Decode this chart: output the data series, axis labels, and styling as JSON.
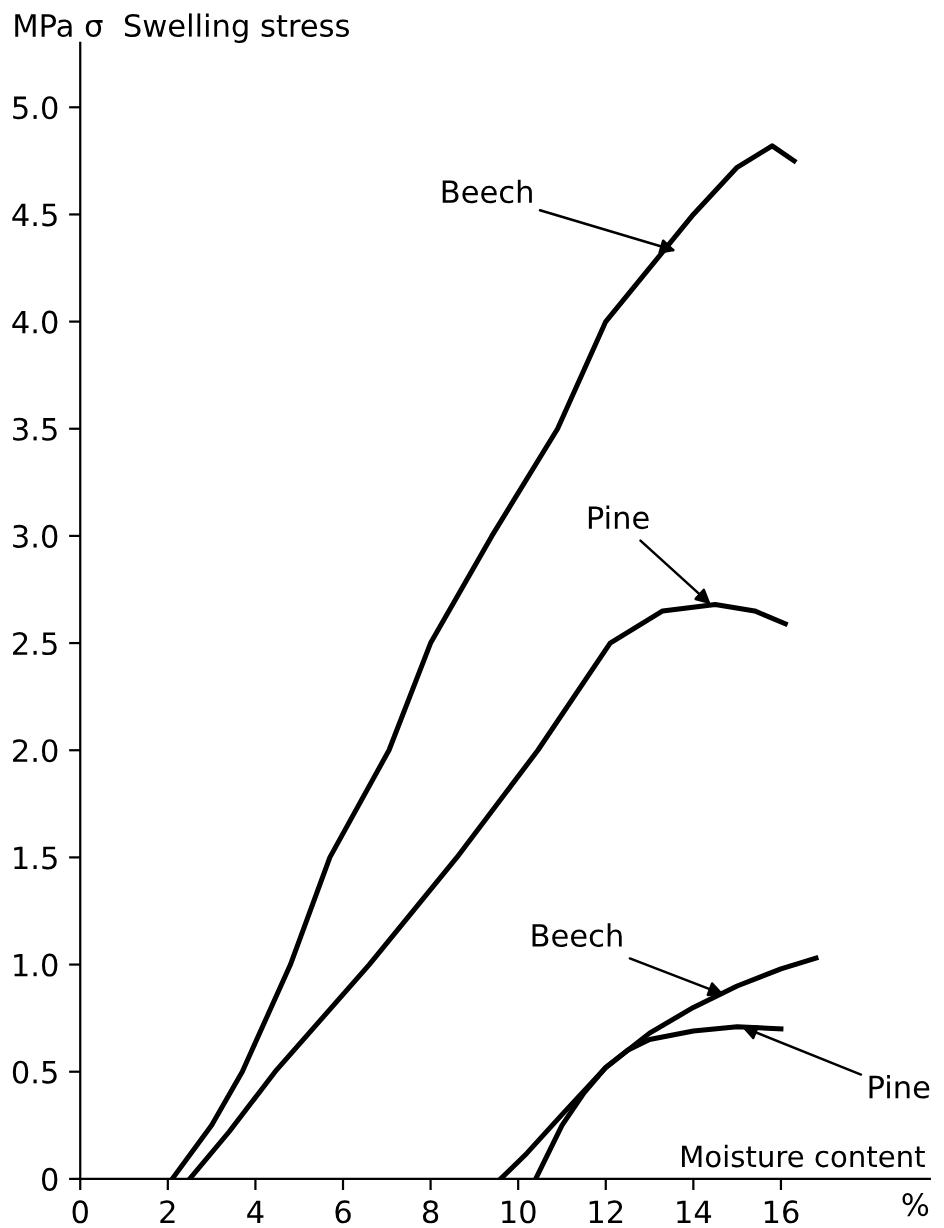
{
  "chart_data": {
    "type": "line",
    "ylabel": "MPa σ  Swelling stress",
    "xlabel": "Moisture content",
    "xlim": [
      0,
      19.4
    ],
    "ylim": [
      0,
      5.3
    ],
    "xticks": [
      0,
      2,
      4,
      6,
      8,
      10,
      12,
      14,
      16
    ],
    "yticks": [
      0,
      {
        "value": 0.5,
        "label": "0.5"
      },
      {
        "value": 1.0,
        "label": "1.0"
      },
      {
        "value": 1.5,
        "label": "1.5"
      },
      {
        "value": 2.0,
        "label": "2.0"
      },
      {
        "value": 2.5,
        "label": "2.5"
      },
      {
        "value": 3.0,
        "label": "3.0"
      },
      {
        "value": 3.5,
        "label": "3.5"
      },
      {
        "value": 4.0,
        "label": "4.0"
      },
      {
        "value": 4.5,
        "label": "4.5"
      },
      {
        "value": 5.0,
        "label": "5.0"
      }
    ],
    "grid": false,
    "legend": false,
    "marker": "none",
    "line_style": "solid",
    "series": [
      {
        "color": "#000000",
        "x": [
          2.1,
          3.0,
          3.7,
          4.8,
          5.7,
          7.05,
          8.0,
          9.4,
          10.9,
          12.0,
          14.0,
          15.0,
          15.8,
          16.3
        ],
        "values": [
          0,
          0.25,
          0.5,
          1.0,
          1.5,
          2.0,
          2.5,
          3.0,
          3.5,
          4.0,
          4.5,
          4.72,
          4.82,
          4.75
        ]
      },
      {
        "color": "#000000",
        "x": [
          2.5,
          3.4,
          4.45,
          6.6,
          8.6,
          10.45,
          12.1,
          13.3,
          14.5,
          15.4,
          16.1
        ],
        "values": [
          0,
          0.22,
          0.5,
          1.0,
          1.5,
          2.0,
          2.5,
          2.65,
          2.68,
          2.65,
          2.59
        ]
      },
      {
        "color": "#000000",
        "x": [
          9.6,
          10.2,
          11.0,
          12.0,
          13.0,
          14.0,
          15.0,
          16.0,
          16.8
        ],
        "values": [
          0,
          0.12,
          0.3,
          0.52,
          0.68,
          0.8,
          0.9,
          0.98,
          1.03
        ]
      },
      {
        "color": "#000000",
        "x": [
          10.4,
          11.0,
          11.5,
          12.0,
          12.5,
          13.0,
          14.0,
          15.0,
          16.0
        ],
        "values": [
          0,
          0.25,
          0.4,
          0.52,
          0.6,
          0.65,
          0.69,
          0.71,
          0.7
        ]
      }
    ],
    "annotations": [
      {
        "text": "Beech",
        "x": 13.6,
        "y": 4.33
      },
      {
        "text": "Pine",
        "x": 14.4,
        "y": 2.68
      },
      {
        "text": "Beech",
        "x": 14.7,
        "y": 0.86
      },
      {
        "text": "Pine",
        "x": 15.1,
        "y": 0.71
      },
      "%"
    ]
  }
}
